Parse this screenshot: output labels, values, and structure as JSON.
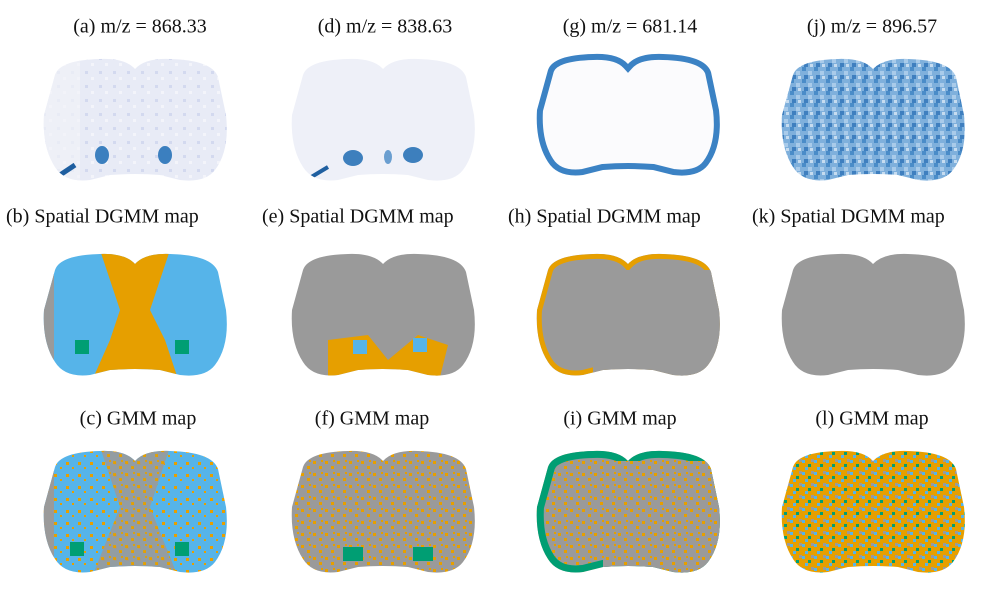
{
  "panels": [
    {
      "label": "(a) m/z = 868.33"
    },
    {
      "label": "(d) m/z = 838.63"
    },
    {
      "label": "(g)  m/z = 681.14"
    },
    {
      "label": "(j) m/z = 896.57"
    },
    {
      "label": "(b) Spatial  DGMM  map"
    },
    {
      "label": "(e) Spatial  DGMM  map"
    },
    {
      "label": "(h) Spatial  DGMM  map"
    },
    {
      "label": "(k) Spatial  DGMM  map"
    },
    {
      "label": "(c) GMM  map"
    },
    {
      "label": "(f) GMM  map"
    },
    {
      "label": "(i)  GMM  map"
    },
    {
      "label": "(l)  GMM  map"
    }
  ]
}
